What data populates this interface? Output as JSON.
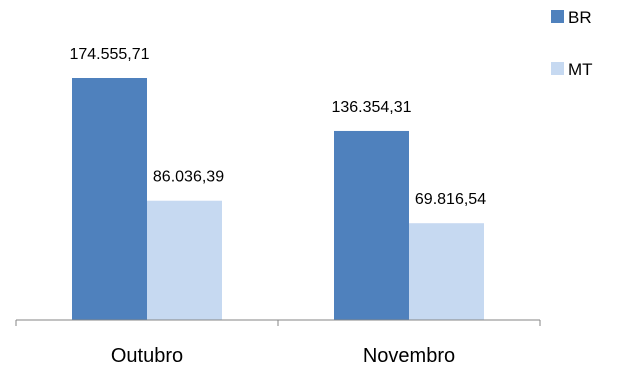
{
  "chart_data": {
    "type": "bar",
    "categories": [
      "Outubro",
      "Novembro"
    ],
    "series": [
      {
        "name": "BR",
        "values": [
          174555.71,
          136354.31
        ],
        "labels": [
          "174.555,71",
          "136.354,31"
        ],
        "color": "#4f81bd"
      },
      {
        "name": "MT",
        "values": [
          86036.39,
          69816.54
        ],
        "labels": [
          "86.036,39",
          "69.816,54"
        ],
        "color": "#c6d9f1"
      }
    ],
    "ylim": [
      0,
      210000
    ],
    "grid": false,
    "legend": "top-right"
  }
}
